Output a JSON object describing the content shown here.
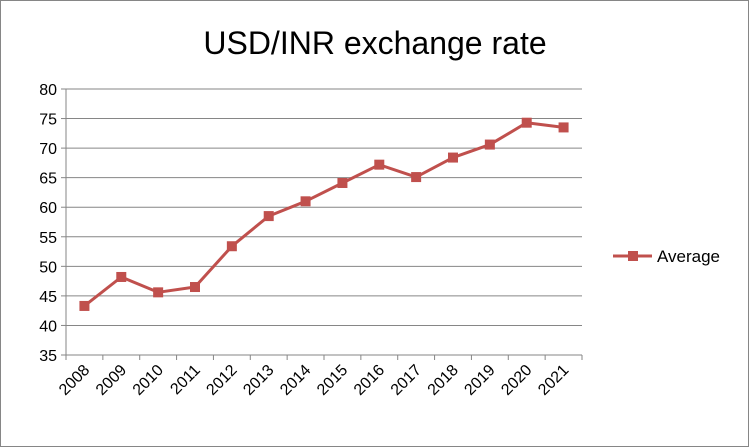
{
  "chart_data": {
    "type": "line",
    "title": "USD/INR exchange rate",
    "xlabel": "",
    "ylabel": "",
    "categories": [
      "2008",
      "2009",
      "2010",
      "2011",
      "2012",
      "2013",
      "2014",
      "2015",
      "2016",
      "2017",
      "2018",
      "2019",
      "2020",
      "2021"
    ],
    "series": [
      {
        "name": "Average",
        "color": "#C0504D",
        "marker": "square",
        "values": [
          43.3,
          48.2,
          45.6,
          46.5,
          53.4,
          58.5,
          61.0,
          64.1,
          67.2,
          65.1,
          68.4,
          70.6,
          74.3,
          73.5
        ]
      }
    ],
    "ylim": [
      35,
      80
    ],
    "yticks": [
      35,
      40,
      45,
      50,
      55,
      60,
      65,
      70,
      75,
      80
    ],
    "grid": "horizontal",
    "legend": "right"
  }
}
